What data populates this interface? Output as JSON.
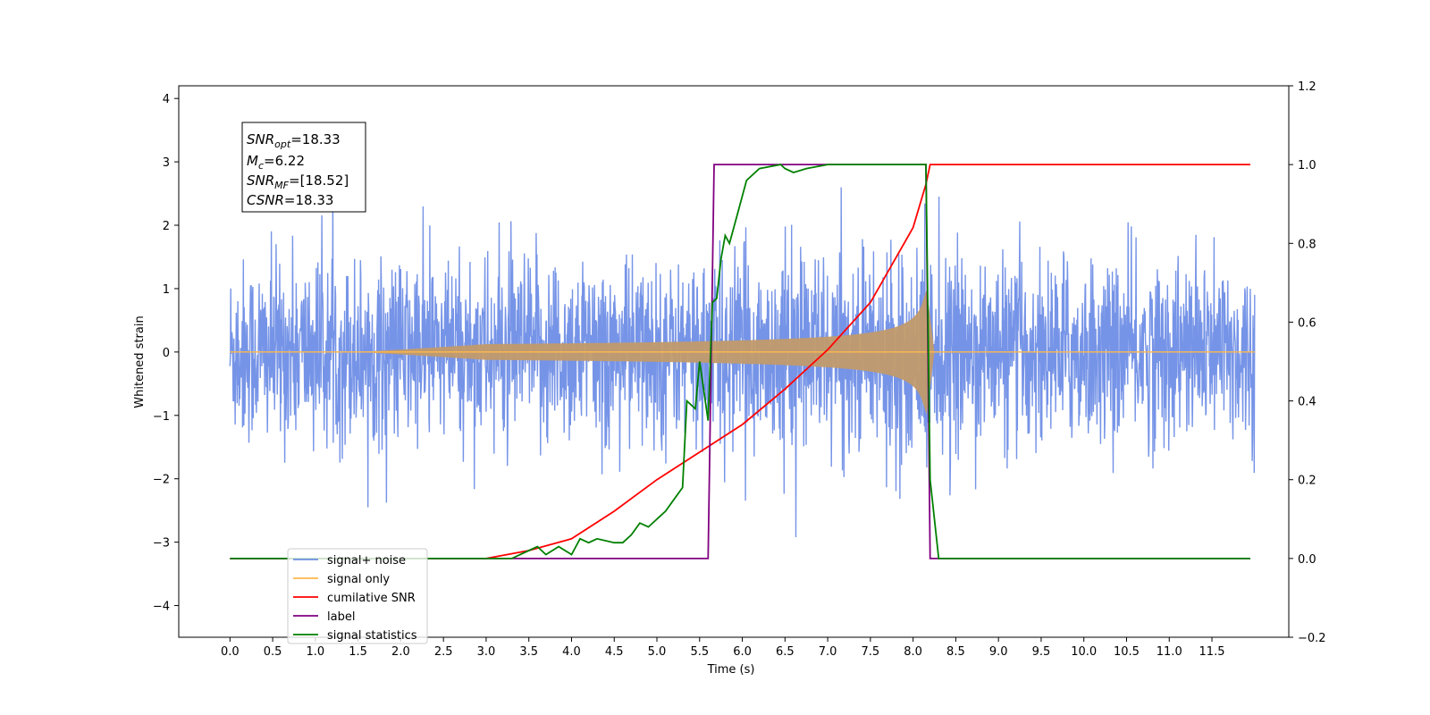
{
  "chart_data": {
    "type": "line",
    "xlabel": "Time (s)",
    "ylabel": "Whitened strain",
    "xlim": [
      -0.6,
      12.4
    ],
    "ylim_left": [
      -4.5,
      4.2
    ],
    "ylim_right": [
      -0.2,
      1.2
    ],
    "x_ticks": [
      "0.0",
      "0.5",
      "1.0",
      "1.5",
      "2.0",
      "2.5",
      "3.0",
      "3.5",
      "4.0",
      "4.5",
      "5.0",
      "5.5",
      "6.0",
      "6.5",
      "7.0",
      "7.5",
      "8.0",
      "8.5",
      "9.0",
      "9.5",
      "10.0",
      "10.5",
      "11.0",
      "11.5"
    ],
    "y_left_ticks": [
      "4",
      "3",
      "2",
      "1",
      "0",
      "−1",
      "−2",
      "−3",
      "−4"
    ],
    "y_right_ticks": [
      "1.2",
      "1.0",
      "0.8",
      "0.6",
      "0.4",
      "0.2",
      "0.0",
      "−0.2"
    ],
    "grid": false,
    "legend_position": "lower-left",
    "annotation": {
      "snr_opt": "=18.33",
      "mc": "=6.22",
      "snr_mf": "=[18.52]",
      "csnr": "=18.33"
    },
    "series": [
      {
        "name": "signal+ noise",
        "color": "#6f8ee6",
        "axis": "left",
        "description_rms": 0.9,
        "x_range": [
          0,
          12
        ]
      },
      {
        "name": "signal only",
        "color": "#ffb84d",
        "axis": "left",
        "chirp_start": 3.0,
        "merger": 8.15,
        "peak_amplitude": 1.1
      },
      {
        "name": "cumilative SNR",
        "color": "#ff0000",
        "axis": "right",
        "x": [
          0,
          3.0,
          3.5,
          4.0,
          4.5,
          5.0,
          5.5,
          6.0,
          6.5,
          7.0,
          7.5,
          8.0,
          8.15,
          8.2,
          11.95
        ],
        "y": [
          0,
          0,
          0.02,
          0.05,
          0.12,
          0.2,
          0.27,
          0.34,
          0.43,
          0.53,
          0.65,
          0.84,
          0.95,
          1.0,
          1.0
        ]
      },
      {
        "name": "label",
        "color": "#800080",
        "axis": "right",
        "x": [
          0,
          5.6,
          5.67,
          8.15,
          8.2,
          11.95
        ],
        "y": [
          0,
          0,
          1,
          1,
          0,
          0
        ]
      },
      {
        "name": "signal statistics",
        "color": "#008000",
        "axis": "right",
        "x": [
          0,
          3.3,
          3.5,
          3.6,
          3.7,
          3.85,
          4.0,
          4.1,
          4.2,
          4.3,
          4.5,
          4.6,
          4.7,
          4.8,
          4.9,
          5.0,
          5.1,
          5.2,
          5.3,
          5.35,
          5.45,
          5.5,
          5.6,
          5.65,
          5.7,
          5.75,
          5.8,
          5.85,
          5.95,
          6.05,
          6.2,
          6.45,
          6.5,
          6.6,
          6.75,
          7.0,
          8.15,
          8.2,
          8.3,
          11.95
        ],
        "y": [
          0,
          0,
          0.02,
          0.03,
          0.01,
          0.03,
          0.01,
          0.05,
          0.04,
          0.05,
          0.04,
          0.04,
          0.06,
          0.09,
          0.08,
          0.1,
          0.12,
          0.15,
          0.18,
          0.4,
          0.38,
          0.5,
          0.35,
          0.65,
          0.66,
          0.76,
          0.82,
          0.8,
          0.88,
          0.96,
          0.99,
          1.0,
          0.99,
          0.98,
          0.99,
          1.0,
          1.0,
          0.2,
          0.0,
          0.0
        ]
      }
    ]
  }
}
